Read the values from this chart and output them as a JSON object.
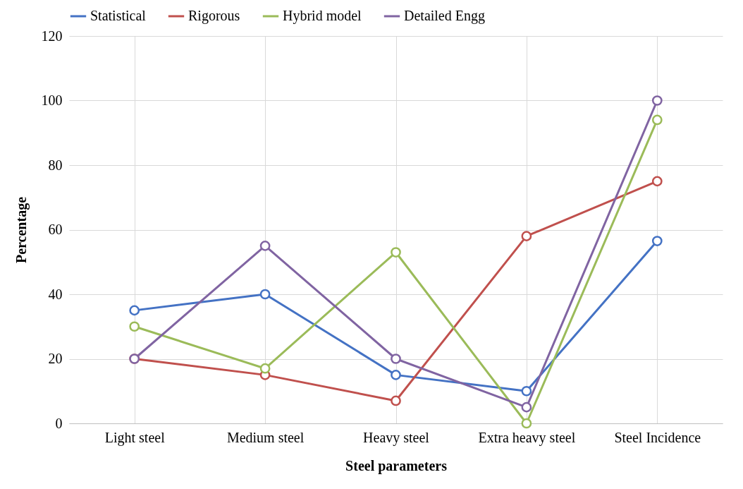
{
  "chart_data": {
    "type": "line",
    "xlabel": "Steel parameters",
    "ylabel": "Percentage",
    "categories": [
      "Light steel",
      "Medium steel",
      "Heavy steel",
      "Extra heavy steel",
      "Steel Incidence"
    ],
    "series": [
      {
        "name": "Statistical",
        "color": "#4472c4",
        "values": [
          35,
          40,
          15,
          10,
          56.5
        ]
      },
      {
        "name": "Rigorous",
        "color": "#c0504d",
        "values": [
          20,
          15,
          7,
          58,
          75
        ]
      },
      {
        "name": "Hybrid model",
        "color": "#9bbb59",
        "values": [
          30,
          17,
          53,
          0,
          94
        ]
      },
      {
        "name": "Detailed Engg",
        "color": "#8064a2",
        "values": [
          20,
          55,
          20,
          5,
          100
        ]
      }
    ],
    "ylim": [
      0,
      120
    ],
    "yticks": [
      0,
      20,
      40,
      60,
      80,
      100,
      120
    ],
    "grid": true,
    "legend": "top",
    "marker": "circle",
    "line_style": "solid"
  }
}
